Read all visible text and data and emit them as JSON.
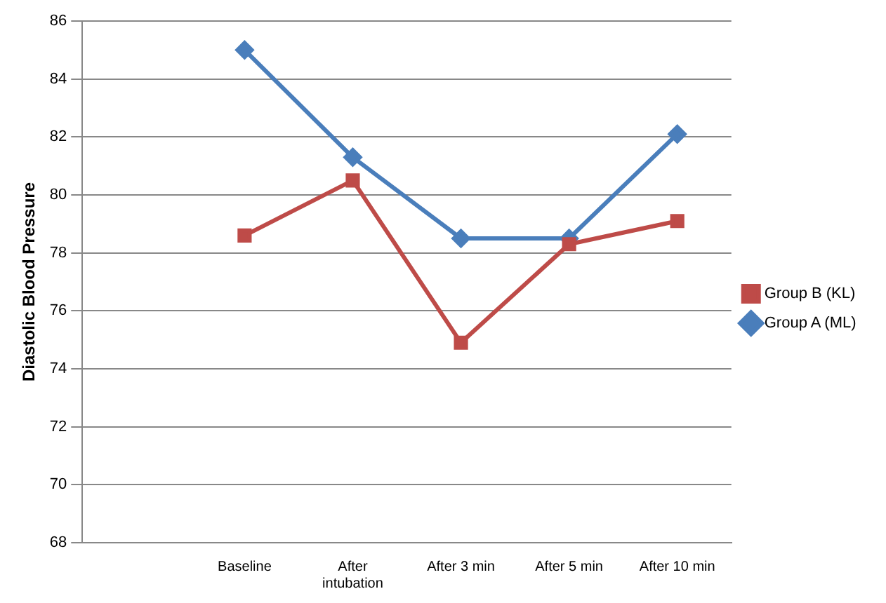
{
  "chart_data": {
    "type": "line",
    "ylabel": "Diastolic Blood Pressure",
    "categories": [
      null,
      "Baseline",
      "After intubation",
      "After 3 min",
      "After 5 min",
      "After 10 min"
    ],
    "series": [
      {
        "name": "Group A (ML)",
        "color": "#4a7ebb",
        "marker": "diamond",
        "values": [
          null,
          85,
          81.3,
          78.5,
          78.5,
          82.1
        ]
      },
      {
        "name": "Group B (KL)",
        "color": "#be4b48",
        "marker": "square",
        "values": [
          null,
          78.6,
          80.5,
          74.9,
          78.3,
          79.1
        ]
      }
    ],
    "ylim": [
      68,
      86
    ],
    "yticks": [
      68,
      70,
      72,
      74,
      76,
      78,
      80,
      82,
      84,
      86
    ],
    "grid": "y",
    "legend": "right",
    "line_style": "solid"
  }
}
